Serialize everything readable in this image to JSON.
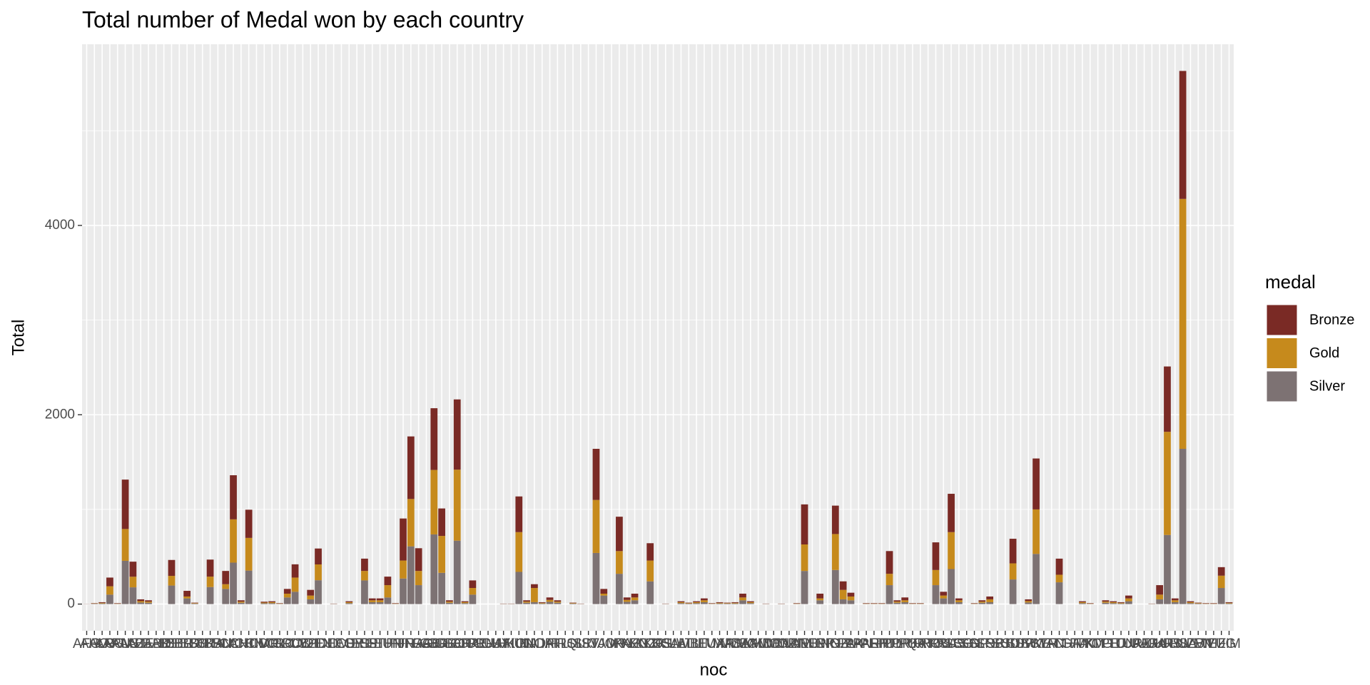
{
  "chart_data": {
    "type": "stacked_bar",
    "title": "Total number of Medal won by each country",
    "x_label": "noc",
    "y_label": "Total",
    "legend_title": "medal",
    "categories": [
      "AFG",
      "AHO",
      "ALG",
      "ARG",
      "ARM",
      "AUS",
      "AUT",
      "AZE",
      "BAH",
      "BAR",
      "BDI",
      "BEL",
      "BER",
      "BLR",
      "BOH",
      "BOT",
      "BRA",
      "BRN",
      "BUL",
      "CAN",
      "CHI",
      "CHN",
      "CIV",
      "CMR",
      "COL",
      "CRC",
      "CRO",
      "CUB",
      "CYP",
      "CZE",
      "DEN",
      "DJI",
      "DOM",
      "ECU",
      "EGY",
      "ERI",
      "ESP",
      "EST",
      "ETH",
      "EUN",
      "FIJ",
      "FIN",
      "FRA",
      "FRG",
      "GAB",
      "GBR",
      "GDR",
      "GEO",
      "GER",
      "GHA",
      "GRE",
      "GRN",
      "GUA",
      "GUY",
      "HAI",
      "HKG",
      "HUN",
      "INA",
      "IND",
      "IOA",
      "IRI",
      "IRL",
      "IRQ",
      "ISL",
      "ISR",
      "ISV",
      "ITA",
      "JAM",
      "JOR",
      "JPN",
      "KAZ",
      "KEN",
      "KGZ",
      "KOR",
      "KOS",
      "KSA",
      "KUW",
      "LAT",
      "LIB",
      "LIE",
      "LTU",
      "LUX",
      "MAR",
      "MAS",
      "MDA",
      "MEX",
      "MGL",
      "MKD",
      "MNE",
      "MON",
      "MOZ",
      "MRI",
      "NAM",
      "NED",
      "NEP",
      "NGR",
      "NIG",
      "NOR",
      "NZL",
      "PAK",
      "PAN",
      "PAR",
      "PER",
      "PHI",
      "POL",
      "POR",
      "PRK",
      "PUR",
      "QAT",
      "RHO",
      "ROU",
      "RSA",
      "RUS",
      "SCG",
      "SEN",
      "SGP",
      "SLO",
      "SRB",
      "SRI",
      "SUD",
      "SUI",
      "SUR",
      "SVK",
      "SWE",
      "SYR",
      "TAN",
      "TCH",
      "TGA",
      "THA",
      "TJK",
      "TKM",
      "TOG",
      "TPE",
      "TTO",
      "TUN",
      "TUR",
      "UAE",
      "UAR",
      "UGA",
      "UKR",
      "URS",
      "URU",
      "USA",
      "UZB",
      "VEN",
      "VIE",
      "WIF",
      "YUG",
      "ZIM"
    ],
    "series": [
      {
        "name": "Bronze",
        "color": "#7a2a25",
        "values": [
          1,
          3,
          7,
          92,
          4,
          522,
          159,
          18,
          14,
          0,
          0,
          168,
          0,
          60,
          5,
          0,
          180,
          0,
          140,
          466,
          14,
          298,
          0,
          9,
          10,
          4,
          50,
          140,
          0,
          60,
          168,
          0,
          2,
          0,
          10,
          0,
          130,
          20,
          20,
          90,
          4,
          444,
          661,
          240,
          0,
          652,
          290,
          14,
          742,
          10,
          80,
          0,
          0,
          0,
          2,
          2,
          377,
          14,
          40,
          7,
          26,
          14,
          0,
          5,
          2,
          0,
          540,
          50,
          0,
          363,
          26,
          40,
          0,
          183,
          0,
          2,
          0,
          10,
          5,
          10,
          20,
          4,
          7,
          5,
          7,
          40,
          10,
          0,
          2,
          0,
          2,
          0,
          4,
          423,
          0,
          50,
          0,
          300,
          90,
          40,
          0,
          4,
          4,
          4,
          240,
          14,
          30,
          4,
          4,
          0,
          292,
          40,
          405,
          20,
          0,
          4,
          14,
          30,
          0,
          0,
          260,
          0,
          18,
          538,
          0,
          0,
          170,
          0,
          0,
          10,
          4,
          0,
          14,
          10,
          7,
          30,
          0,
          0,
          2,
          100,
          690,
          20,
          1352,
          10,
          5,
          4,
          4,
          90,
          7
        ]
      },
      {
        "name": "Gold",
        "color": "#c68a1c",
        "values": [
          0,
          3,
          6,
          88,
          3,
          336,
          112,
          15,
          12,
          0,
          0,
          102,
          0,
          20,
          5,
          0,
          110,
          0,
          50,
          457,
          12,
          345,
          0,
          7,
          10,
          3,
          40,
          150,
          0,
          40,
          167,
          0,
          1,
          0,
          10,
          0,
          100,
          20,
          20,
          130,
          3,
          190,
          500,
          150,
          0,
          681,
          390,
          12,
          750,
          10,
          70,
          0,
          0,
          0,
          1,
          1,
          420,
          12,
          150,
          6,
          20,
          12,
          0,
          5,
          1,
          0,
          560,
          20,
          0,
          240,
          20,
          30,
          0,
          220,
          0,
          1,
          0,
          10,
          5,
          10,
          20,
          3,
          6,
          5,
          6,
          30,
          10,
          0,
          1,
          0,
          1,
          0,
          3,
          280,
          0,
          20,
          0,
          380,
          100,
          40,
          0,
          3,
          3,
          3,
          120,
          12,
          20,
          3,
          3,
          0,
          160,
          30,
          390,
          20,
          0,
          3,
          12,
          30,
          0,
          0,
          170,
          0,
          15,
          470,
          0,
          0,
          80,
          0,
          0,
          10,
          3,
          0,
          12,
          10,
          6,
          30,
          0,
          0,
          1,
          50,
          1090,
          20,
          2640,
          10,
          5,
          3,
          3,
          130,
          6
        ]
      },
      {
        "name": "Silver",
        "color": "#7d7273",
        "values": [
          1,
          4,
          7,
          100,
          3,
          457,
          177,
          17,
          14,
          0,
          0,
          196,
          0,
          60,
          5,
          0,
          180,
          0,
          160,
          438,
          14,
          354,
          0,
          9,
          10,
          3,
          70,
          130,
          0,
          50,
          252,
          0,
          2,
          0,
          10,
          0,
          250,
          20,
          20,
          70,
          3,
          270,
          610,
          200,
          0,
          736,
          330,
          14,
          670,
          10,
          100,
          0,
          0,
          0,
          2,
          2,
          340,
          14,
          20,
          7,
          24,
          14,
          0,
          5,
          2,
          0,
          540,
          90,
          0,
          320,
          24,
          40,
          0,
          240,
          0,
          2,
          0,
          10,
          5,
          10,
          20,
          3,
          7,
          5,
          7,
          40,
          10,
          0,
          2,
          0,
          2,
          0,
          3,
          350,
          0,
          40,
          0,
          360,
          50,
          40,
          0,
          3,
          3,
          3,
          200,
          14,
          20,
          3,
          3,
          0,
          200,
          60,
          370,
          20,
          0,
          3,
          14,
          20,
          0,
          0,
          260,
          0,
          17,
          530,
          0,
          0,
          230,
          0,
          0,
          10,
          3,
          0,
          14,
          10,
          7,
          30,
          0,
          0,
          2,
          50,
          730,
          20,
          1640,
          10,
          5,
          3,
          3,
          170,
          7
        ]
      }
    ],
    "stack_order": [
      "Silver",
      "Gold",
      "Bronze"
    ],
    "ylim": [
      -282,
      5914
    ],
    "yticks": [
      0,
      2000,
      4000
    ],
    "grid": true,
    "minor_grid": true,
    "legend": "right"
  }
}
